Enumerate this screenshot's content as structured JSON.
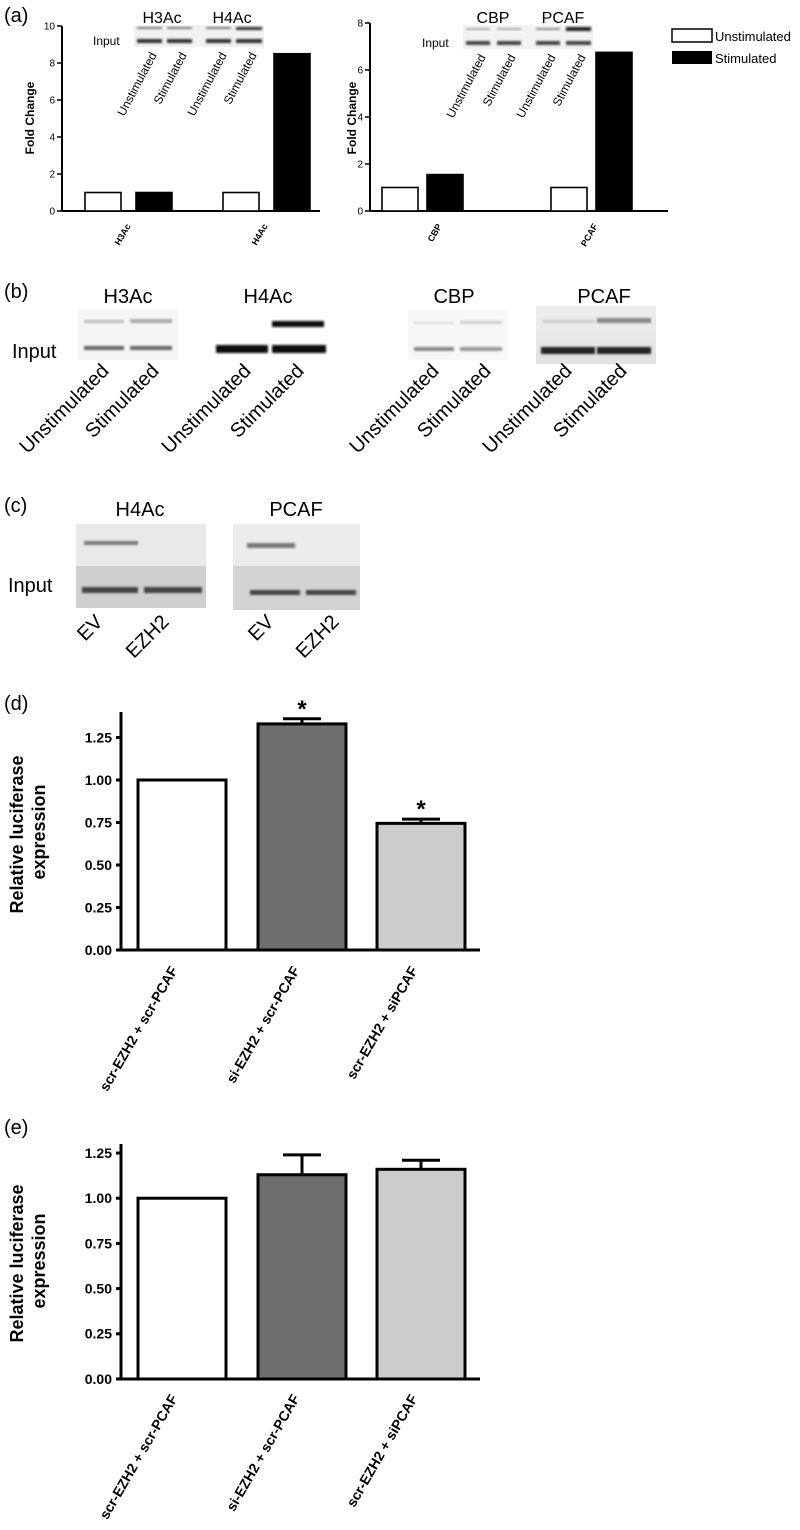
{
  "panels": {
    "a": {
      "label": "(a)"
    },
    "b": {
      "label": "(b)"
    },
    "c": {
      "label": "(c)"
    },
    "d": {
      "label": "(d)"
    },
    "e": {
      "label": "(e)"
    }
  },
  "legend": {
    "unstimulated": "Unstimulated",
    "stimulated": "Stimulated"
  },
  "gels": {
    "a_left": {
      "headers": [
        "H3Ac",
        "H4Ac"
      ],
      "row_label": "Input",
      "lanes": [
        "Unstimulated",
        "Stimulated",
        "Unstimulated",
        "Stimulated"
      ]
    },
    "a_right": {
      "headers": [
        "CBP",
        "PCAF"
      ],
      "row_label": "Input",
      "lanes": [
        "Unstimulated",
        "Stimulated",
        "Unstimulated",
        "Stimulated"
      ]
    },
    "b": {
      "headers": [
        "H3Ac",
        "H4Ac",
        "CBP",
        "PCAF"
      ],
      "row_label": "Input",
      "lanes": [
        "Unstimulated",
        "Stimulated",
        "Unstimulated",
        "Stimulated",
        "Unstimulated",
        "Stimulated",
        "Unstimulated",
        "Stimulated"
      ]
    },
    "c": {
      "headers": [
        "H4Ac",
        "PCAF"
      ],
      "row_label": "Input",
      "lanes": [
        "EV",
        "EZH2",
        "EV",
        "EZH2"
      ]
    }
  },
  "chart_data": [
    {
      "id": "a_left",
      "type": "bar",
      "categories": [
        "H3Ac",
        "H4Ac"
      ],
      "series": [
        {
          "name": "Unstimulated",
          "values": [
            1.0,
            1.0
          ],
          "color": "#ffffff"
        },
        {
          "name": "Stimulated",
          "values": [
            1.0,
            8.5
          ],
          "color": "#000000"
        }
      ],
      "ylabel": "Fold Change",
      "ylim": [
        0,
        10
      ],
      "yticks": [
        "0",
        "2",
        "4",
        "6",
        "8",
        "10"
      ]
    },
    {
      "id": "a_right",
      "type": "bar",
      "categories": [
        "CBP",
        "PCAF"
      ],
      "series": [
        {
          "name": "Unstimulated",
          "values": [
            1.0,
            1.0
          ],
          "color": "#ffffff"
        },
        {
          "name": "Stimulated",
          "values": [
            1.55,
            6.75
          ],
          "color": "#000000"
        }
      ],
      "ylabel": "Fold Change",
      "ylim": [
        0,
        8
      ],
      "yticks": [
        "0",
        "2",
        "4",
        "6",
        "8"
      ]
    },
    {
      "id": "d",
      "type": "bar",
      "categories": [
        "scr-EZH2 + scr-PCAF",
        "si-EZH2 + scr-PCAF",
        "scr-EZH2 + siPCAF"
      ],
      "values": [
        1.0,
        1.33,
        0.745
      ],
      "errors": [
        0,
        0.03,
        0.025
      ],
      "colors": [
        "#ffffff",
        "#6e6e6e",
        "#cccccc"
      ],
      "annotations": [
        "",
        "*",
        "*"
      ],
      "ylabel": "Relative luciferase expression",
      "ylim": [
        0,
        1.4
      ],
      "yticks": [
        "0.00",
        "0.25",
        "0.50",
        "0.75",
        "1.00",
        "1.25"
      ]
    },
    {
      "id": "e",
      "type": "bar",
      "categories": [
        "scr-EZH2 + scr-PCAF",
        "si-EZH2 + scr-PCAF",
        "scr-EZH2 + siPCAF"
      ],
      "values": [
        1.0,
        1.13,
        1.16
      ],
      "errors": [
        0,
        0.11,
        0.05
      ],
      "colors": [
        "#ffffff",
        "#6e6e6e",
        "#cccccc"
      ],
      "ylabel": "Relative luciferase expression",
      "ylim": [
        0,
        1.3
      ],
      "yticks": [
        "0.00",
        "0.25",
        "0.50",
        "0.75",
        "1.00",
        "1.25"
      ]
    }
  ]
}
